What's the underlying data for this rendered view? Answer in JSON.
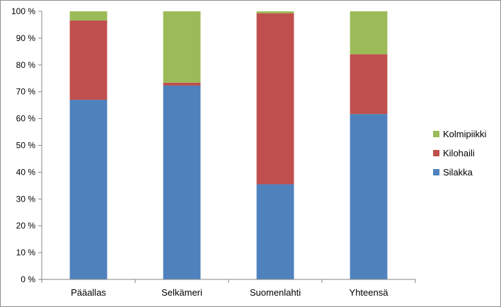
{
  "chart_data": {
    "type": "bar",
    "stacked": "percent",
    "categories": [
      "Pääallas",
      "Selkämeri",
      "Suomenlahti",
      "Yhteensä"
    ],
    "series": [
      {
        "name": "Silakka",
        "color": "#4f81bd",
        "values": [
          67,
          72.3,
          35.5,
          61.7
        ]
      },
      {
        "name": "Kilohaili",
        "color": "#c0504d",
        "values": [
          29.6,
          1.1,
          63.8,
          22.3
        ]
      },
      {
        "name": "Kolmipiikki",
        "color": "#9bbb59",
        "values": [
          3.4,
          26.6,
          0.7,
          16
        ]
      }
    ],
    "y_ticks": [
      "0 %",
      "10 %",
      "20 %",
      "30 %",
      "40 %",
      "50 %",
      "60 %",
      "70 %",
      "80 %",
      "90 %",
      "100 %"
    ],
    "ylim": [
      0,
      100
    ],
    "grid": false,
    "legend": {
      "position": "right",
      "entries": [
        "Kolmipiikki",
        "Kilohaili",
        "Silakka"
      ]
    },
    "title": "",
    "xlabel": "",
    "ylabel": ""
  }
}
